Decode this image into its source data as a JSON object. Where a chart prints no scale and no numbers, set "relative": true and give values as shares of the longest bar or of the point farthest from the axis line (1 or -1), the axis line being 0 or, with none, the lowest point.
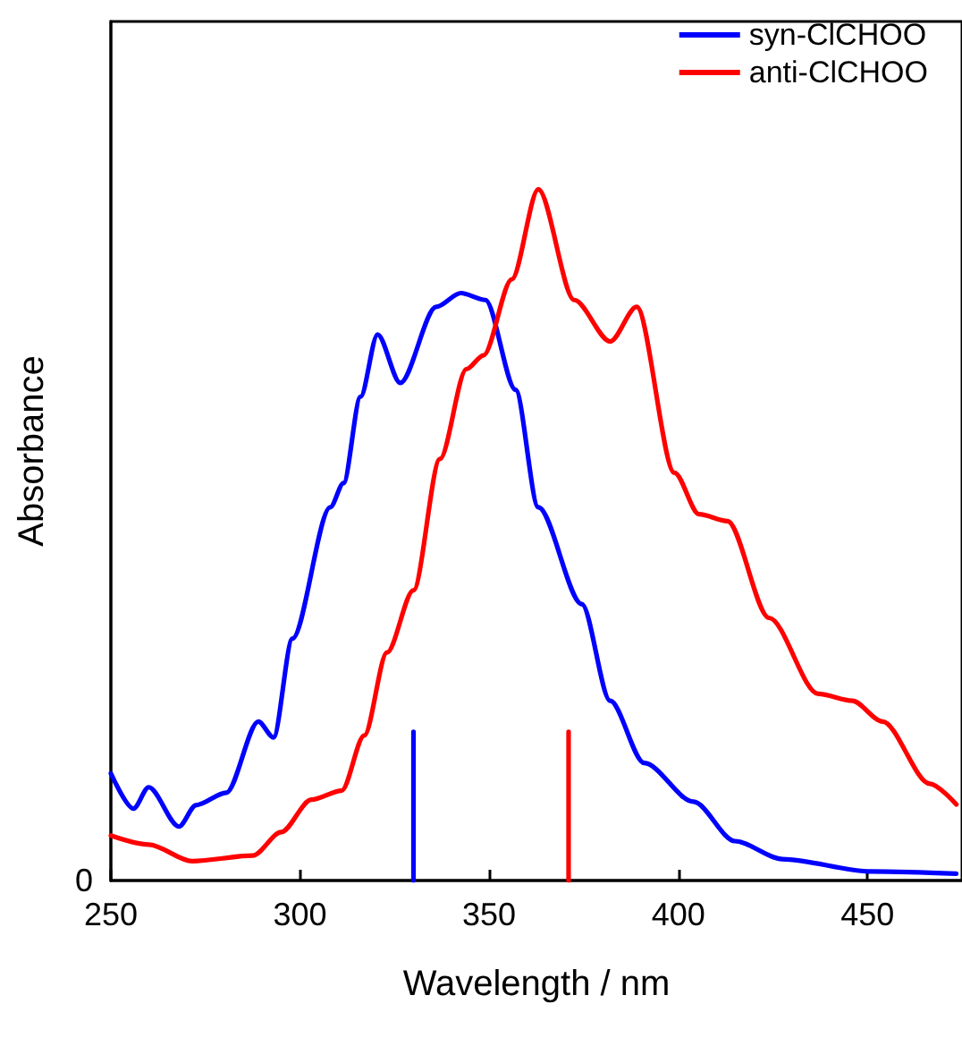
{
  "chart_data": {
    "type": "line",
    "xlabel": "Wavelength / nm",
    "ylabel": "Absorbance",
    "relative": true,
    "annotations": [
      "0"
    ],
    "xlim": [
      250,
      475
    ],
    "xticks": [
      250,
      300,
      350,
      400,
      450
    ],
    "legend": "top right",
    "grid": false,
    "marker": "none",
    "line_style": "solid",
    "series": [
      {
        "name": "syn-ClCHOO",
        "color": "#0000ff",
        "x": [
          250,
          256,
          260,
          268,
          272.5,
          280.5,
          289,
          293,
          298,
          308,
          311.5,
          316,
          320.5,
          326.5,
          336,
          342.5,
          349,
          357,
          363,
          374.5,
          382,
          391,
          404,
          415,
          427.5,
          451,
          473.5
        ],
        "values": [
          0.155,
          0.104,
          0.135,
          0.078,
          0.109,
          0.127,
          0.23,
          0.207,
          0.35,
          0.54,
          0.575,
          0.7,
          0.79,
          0.72,
          0.83,
          0.85,
          0.84,
          0.71,
          0.54,
          0.4,
          0.26,
          0.17,
          0.114,
          0.057,
          0.031,
          0.013,
          0.01
        ]
      },
      {
        "name": "anti-ClCHOO",
        "color": "#ff0000",
        "x": [
          250,
          260,
          271.5,
          287.5,
          295,
          303,
          311,
          317,
          323,
          330,
          337,
          344,
          348.5,
          356,
          363,
          372.5,
          382,
          389,
          399,
          405.5,
          413,
          424,
          437,
          446,
          454,
          466.5,
          473.5
        ],
        "values": [
          0.065,
          0.052,
          0.028,
          0.036,
          0.07,
          0.117,
          0.13,
          0.21,
          0.33,
          0.42,
          0.61,
          0.74,
          0.76,
          0.87,
          1.0,
          0.84,
          0.78,
          0.83,
          0.59,
          0.53,
          0.52,
          0.38,
          0.27,
          0.26,
          0.23,
          0.14,
          0.11
        ]
      },
      {
        "color": "#0000ff",
        "x": [
          330,
          330
        ],
        "values": [
          0,
          0.215
        ]
      },
      {
        "color": "#ff0000",
        "x": [
          371,
          371
        ],
        "values": [
          0,
          0.215
        ]
      }
    ]
  }
}
